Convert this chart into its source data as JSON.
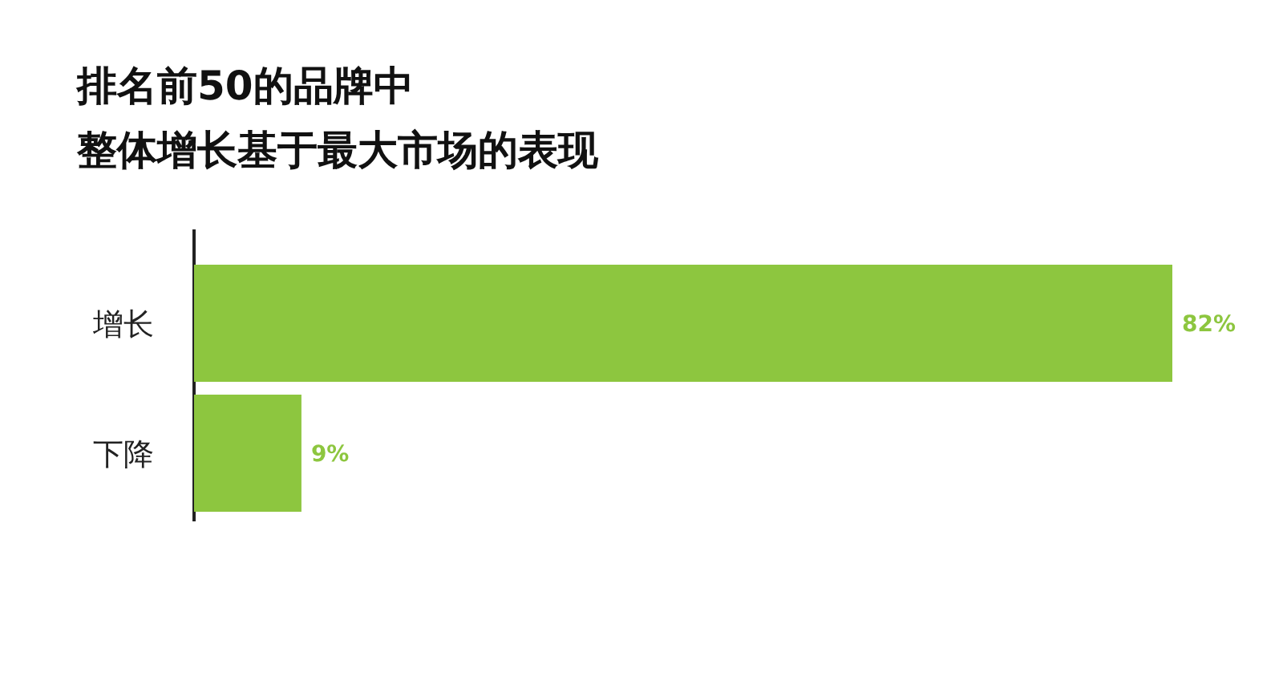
{
  "chart_data": {
    "type": "bar",
    "orientation": "horizontal",
    "title": "排名前50的品牌中",
    "subtitle": "整体增长基于最大市场的表现",
    "categories": [
      "增长",
      "下降"
    ],
    "values": [
      82,
      9
    ],
    "color": "#8dc63f",
    "value_labels": [
      "82%",
      "9%"
    ]
  }
}
